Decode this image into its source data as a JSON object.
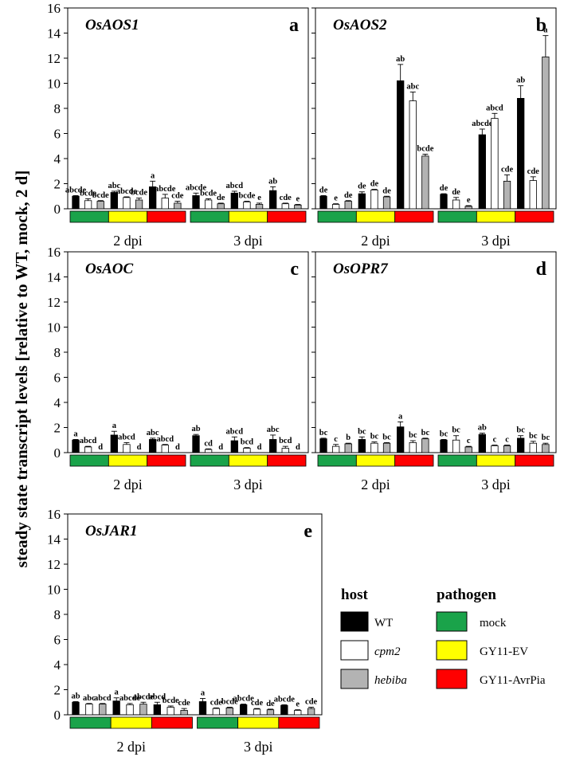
{
  "ylabel": "steady state transcript levels [relative to WT, mock, 2 d]",
  "y_ticks": [
    "0",
    "2",
    "4",
    "6",
    "8",
    "10",
    "12",
    "14",
    "16"
  ],
  "ylim": [
    0,
    16
  ],
  "hosts": [
    "WT",
    "cpm2",
    "hebiba"
  ],
  "pathogens": [
    "mock",
    "GY11-EV",
    "GY11-AvrPia"
  ],
  "colors": {
    "WT": "#000000",
    "cpm2": "#ffffff",
    "hebiba": "#b3b3b3",
    "mock": "#1aa34a",
    "GY11-EV": "#ffff00",
    "GY11-AvrPia": "#ff0000"
  },
  "legend": {
    "host_title": "host",
    "pathogen_title": "pathogen",
    "host_labels": [
      "WT",
      "cpm2",
      "hebiba"
    ],
    "pathogen_labels": [
      "mock",
      "GY11-EV",
      "GY11-AvrPia"
    ]
  },
  "chart_data": [
    {
      "type": "bar",
      "panel": "a",
      "gene": "OsAOS1",
      "groups": [
        "2 dpi",
        "3 dpi"
      ],
      "series": [
        {
          "group": "2 dpi",
          "values": [
            1.0,
            0.65,
            0.6,
            1.3,
            0.9,
            0.7,
            1.75,
            0.85,
            0.45
          ],
          "errors": [
            0.05,
            0.15,
            0.05,
            0.1,
            0.05,
            0.15,
            0.45,
            0.3,
            0.15
          ],
          "letters": [
            "abcde",
            "bcde",
            "bcde",
            "abc",
            "abcde",
            "bcde",
            "a",
            "abcde",
            "cde"
          ]
        },
        {
          "group": "3 dpi",
          "values": [
            1.05,
            0.7,
            0.4,
            1.25,
            0.55,
            0.35,
            1.45,
            0.4,
            0.3
          ],
          "errors": [
            0.2,
            0.1,
            0.05,
            0.15,
            0.05,
            0.1,
            0.3,
            0.05,
            0.05
          ],
          "letters": [
            "abcde",
            "bcde",
            "de",
            "abcd",
            "bcde",
            "e",
            "ab",
            "cde",
            "e"
          ]
        }
      ]
    },
    {
      "type": "bar",
      "panel": "b",
      "gene": "OsAOS2",
      "groups": [
        "2 dpi",
        "3 dpi"
      ],
      "series": [
        {
          "group": "2 dpi",
          "values": [
            1.0,
            0.35,
            0.6,
            1.2,
            1.5,
            0.95,
            10.2,
            8.6,
            4.2
          ],
          "errors": [
            0.05,
            0.05,
            0.05,
            0.15,
            0.05,
            0.05,
            1.3,
            0.7,
            0.15
          ],
          "letters": [
            "de",
            "e",
            "de",
            "de",
            "de",
            "de",
            "ab",
            "abc",
            "bcde"
          ]
        },
        {
          "group": "3 dpi",
          "values": [
            1.15,
            0.7,
            0.2,
            5.9,
            7.2,
            2.2,
            8.8,
            2.25,
            12.1
          ],
          "errors": [
            0.05,
            0.2,
            0.05,
            0.45,
            0.4,
            0.5,
            1.0,
            0.3,
            1.7
          ],
          "letters": [
            "de",
            "de",
            "e",
            "abcde",
            "abcd",
            "cde",
            "ab",
            "cde",
            "a"
          ]
        }
      ]
    },
    {
      "type": "bar",
      "panel": "c",
      "gene": "OsAOC",
      "groups": [
        "2 dpi",
        "3 dpi"
      ],
      "series": [
        {
          "group": "2 dpi",
          "values": [
            1.0,
            0.45,
            0.0,
            1.4,
            0.65,
            0.0,
            1.05,
            0.6,
            0.0
          ],
          "errors": [
            0.05,
            0.05,
            0.0,
            0.3,
            0.15,
            0.0,
            0.1,
            0.05,
            0.0
          ],
          "letters": [
            "a",
            "abcd",
            "d",
            "a",
            "abcd",
            "d",
            "abc",
            "abcd",
            "d"
          ]
        },
        {
          "group": "3 dpi",
          "values": [
            1.35,
            0.25,
            0.0,
            0.95,
            0.35,
            0.0,
            1.05,
            0.35,
            0.0
          ],
          "errors": [
            0.1,
            0.05,
            0.0,
            0.3,
            0.05,
            0.0,
            0.35,
            0.15,
            0.0
          ],
          "letters": [
            "ab",
            "cd",
            "d",
            "abcd",
            "bcd",
            "d",
            "abc",
            "bcd",
            "d"
          ]
        }
      ]
    },
    {
      "type": "bar",
      "panel": "d",
      "gene": "OsOPR7",
      "groups": [
        "2 dpi",
        "3 dpi"
      ],
      "series": [
        {
          "group": "2 dpi",
          "values": [
            1.1,
            0.5,
            0.7,
            1.05,
            0.75,
            0.75,
            2.05,
            0.8,
            1.1
          ],
          "errors": [
            0.05,
            0.15,
            0.05,
            0.2,
            0.1,
            0.05,
            0.4,
            0.15,
            0.05
          ],
          "letters": [
            "bc",
            "c",
            "b",
            "bc",
            "bc",
            "bc",
            "a",
            "bc",
            "bc"
          ]
        },
        {
          "group": "3 dpi",
          "values": [
            1.0,
            1.0,
            0.45,
            1.45,
            0.55,
            0.55,
            1.15,
            0.75,
            0.65
          ],
          "errors": [
            0.05,
            0.35,
            0.05,
            0.1,
            0.05,
            0.05,
            0.2,
            0.15,
            0.1
          ],
          "letters": [
            "bc",
            "bc",
            "c",
            "ab",
            "c",
            "c",
            "bc",
            "bc",
            "bc"
          ]
        }
      ]
    },
    {
      "type": "bar",
      "panel": "e",
      "gene": "OsJAR1",
      "groups": [
        "2 dpi",
        "3 dpi"
      ],
      "series": [
        {
          "group": "2 dpi",
          "values": [
            1.0,
            0.85,
            0.85,
            1.1,
            0.8,
            0.85,
            0.8,
            0.6,
            0.35
          ],
          "errors": [
            0.05,
            0.05,
            0.05,
            0.25,
            0.1,
            0.15,
            0.2,
            0.1,
            0.15
          ],
          "letters": [
            "ab",
            "abc",
            "abcd",
            "a",
            "abcde",
            "abcde",
            "abcd",
            "bcde",
            "cde"
          ]
        },
        {
          "group": "3 dpi",
          "values": [
            1.05,
            0.5,
            0.55,
            0.8,
            0.45,
            0.4,
            0.75,
            0.35,
            0.5
          ],
          "errors": [
            0.25,
            0.05,
            0.05,
            0.05,
            0.05,
            0.05,
            0.05,
            0.05,
            0.1
          ],
          "letters": [
            "a",
            "cde",
            "bcde",
            "abcde",
            "cde",
            "de",
            "abcde",
            "e",
            "cde"
          ]
        }
      ]
    }
  ]
}
